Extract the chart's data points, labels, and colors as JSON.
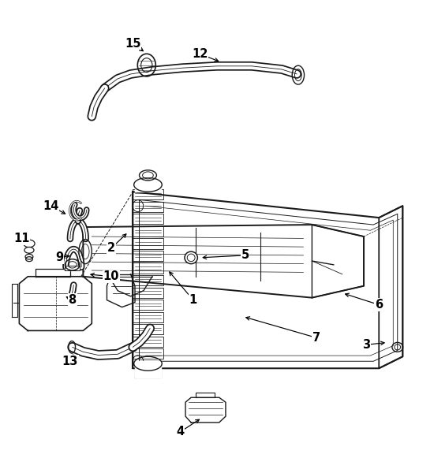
{
  "bg_color": "#ffffff",
  "line_color": "#1a1a1a",
  "fig_width": 5.5,
  "fig_height": 6.0,
  "dpi": 100,
  "labels": {
    "1": [
      0.445,
      0.365,
      0.385,
      0.43
    ],
    "2": [
      0.255,
      0.475,
      0.295,
      0.51
    ],
    "3": [
      0.845,
      0.27,
      0.895,
      0.275
    ],
    "4": [
      0.415,
      0.085,
      0.465,
      0.115
    ],
    "5": [
      0.565,
      0.46,
      0.46,
      0.455
    ],
    "6": [
      0.875,
      0.355,
      0.79,
      0.38
    ],
    "7": [
      0.73,
      0.285,
      0.56,
      0.33
    ],
    "8": [
      0.165,
      0.365,
      0.145,
      0.375
    ],
    "9": [
      0.135,
      0.455,
      0.165,
      0.46
    ],
    "10": [
      0.255,
      0.415,
      0.2,
      0.42
    ],
    "11": [
      0.047,
      0.495,
      0.065,
      0.49
    ],
    "12": [
      0.46,
      0.888,
      0.51,
      0.87
    ],
    "13": [
      0.16,
      0.235,
      0.17,
      0.255
    ],
    "14": [
      0.115,
      0.565,
      0.155,
      0.545
    ],
    "15": [
      0.305,
      0.91,
      0.335,
      0.89
    ]
  }
}
